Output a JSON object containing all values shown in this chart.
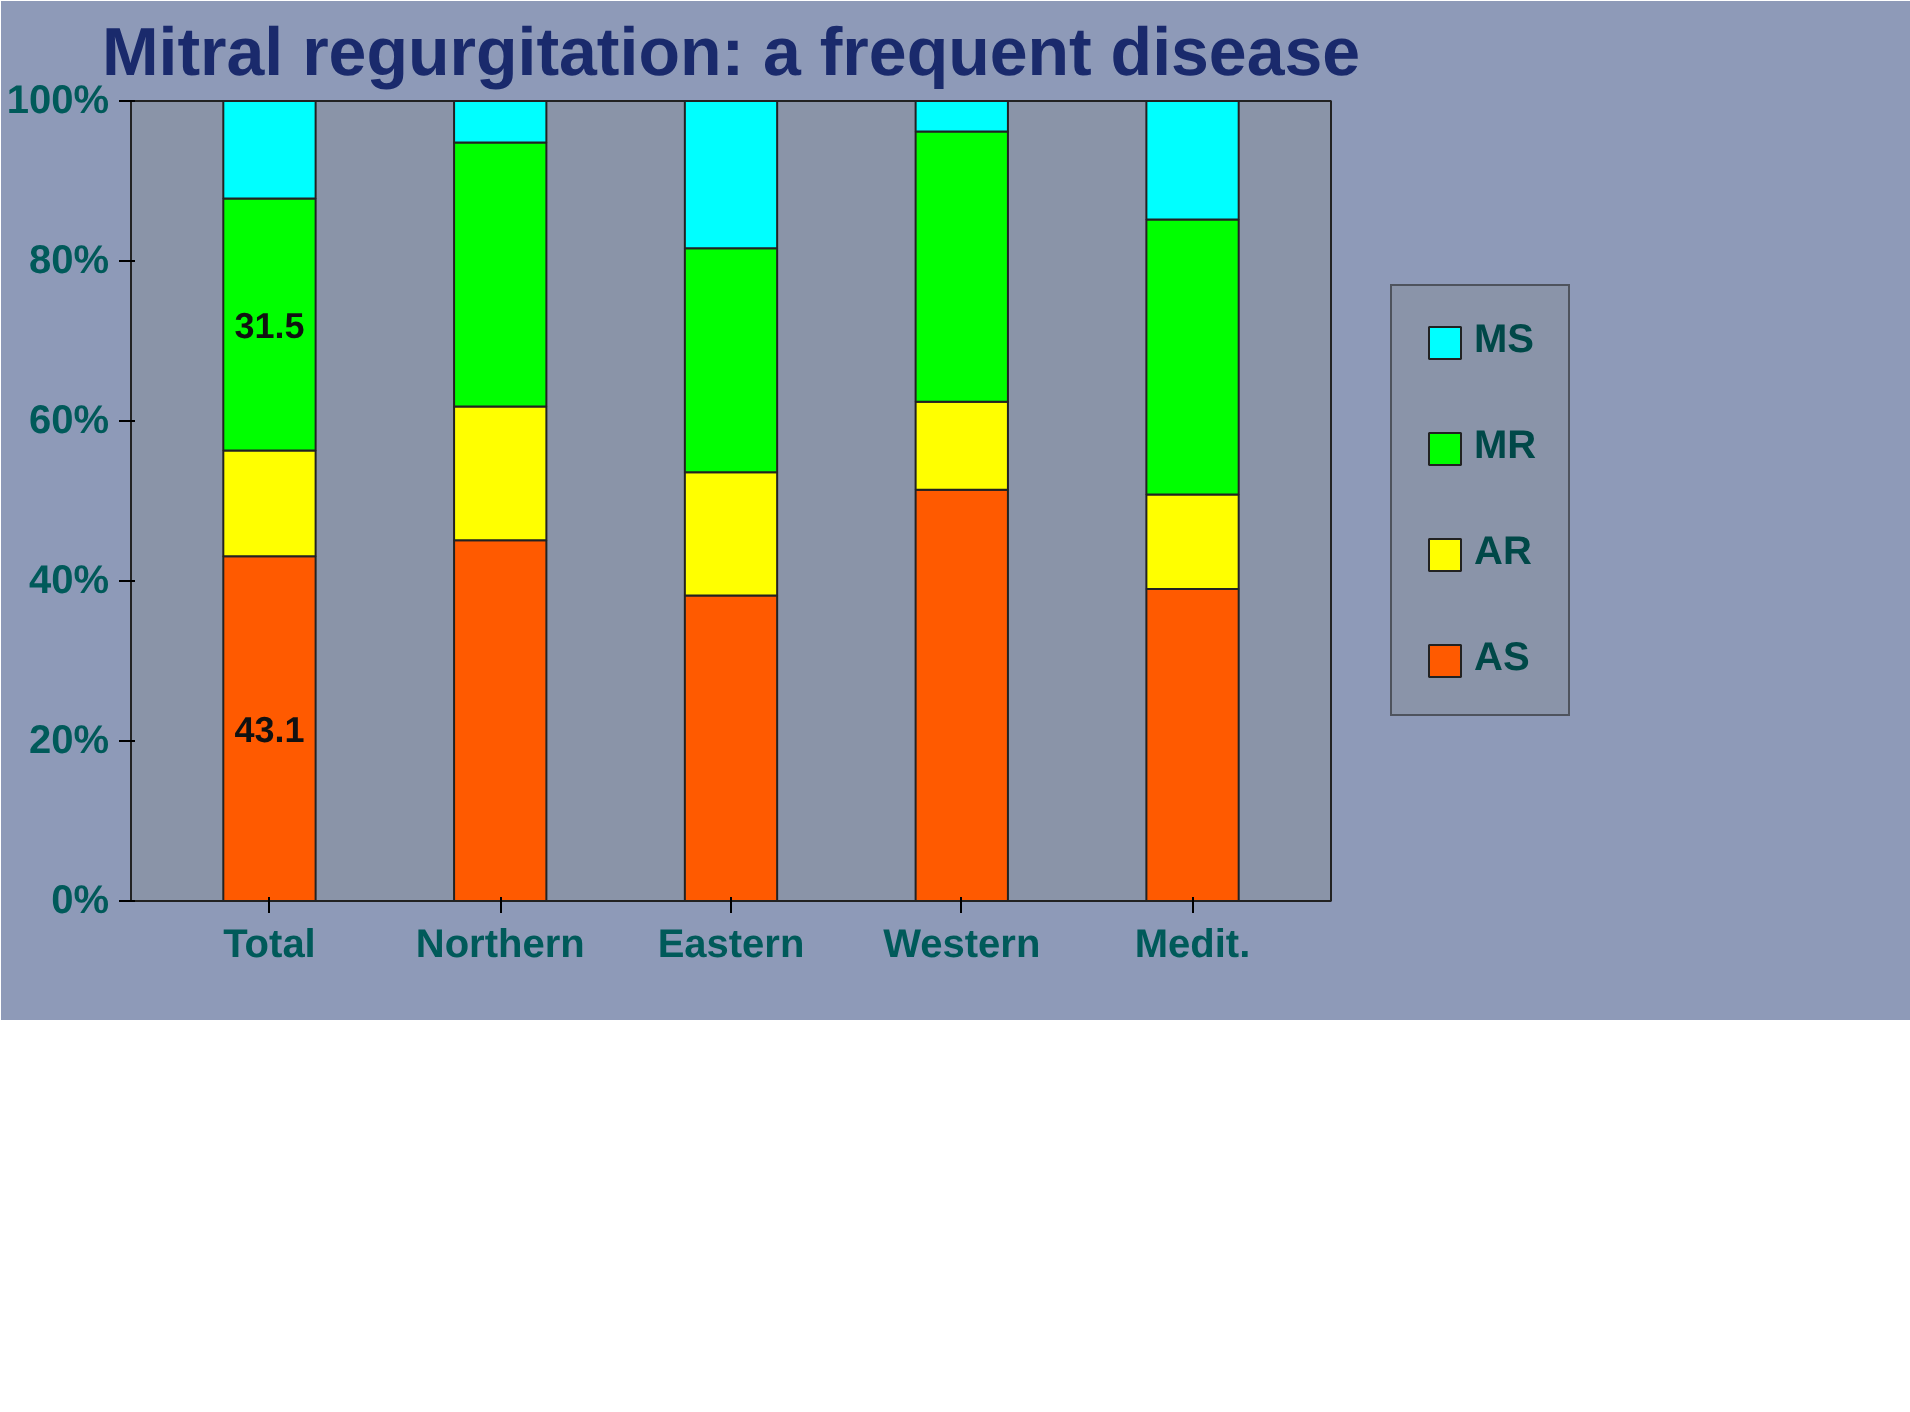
{
  "chart_data": {
    "type": "bar",
    "stacked": true,
    "title": "Mitral regurgitation: a frequent disease",
    "categories": [
      "Total",
      "Northern",
      "Eastern",
      "Western",
      "Medit."
    ],
    "series": [
      {
        "name": "AS",
        "color": "#ff5a00",
        "values": [
          43.1,
          45.1,
          38.2,
          51.4,
          39.0
        ],
        "value_labels": [
          "43.1",
          null,
          null,
          null,
          null
        ]
      },
      {
        "name": "AR",
        "color": "#ffff00",
        "values": [
          13.2,
          16.7,
          15.4,
          11.0,
          11.8
        ]
      },
      {
        "name": "MR",
        "color": "#00ff00",
        "values": [
          31.5,
          33.0,
          28.0,
          33.8,
          34.4
        ],
        "value_labels": [
          "31.5",
          null,
          null,
          null,
          null
        ]
      },
      {
        "name": "MS",
        "color": "#00ffff",
        "values": [
          12.2,
          5.2,
          18.4,
          3.8,
          14.8
        ]
      }
    ],
    "ylim": [
      0,
      100
    ],
    "yticks": [
      {
        "value": 0,
        "label": "0%"
      },
      {
        "value": 20,
        "label": "20%"
      },
      {
        "value": 40,
        "label": "40%"
      },
      {
        "value": 60,
        "label": "60%"
      },
      {
        "value": 80,
        "label": "80%"
      },
      {
        "value": 100,
        "label": "100%"
      }
    ],
    "grid": false,
    "legend": "right"
  }
}
